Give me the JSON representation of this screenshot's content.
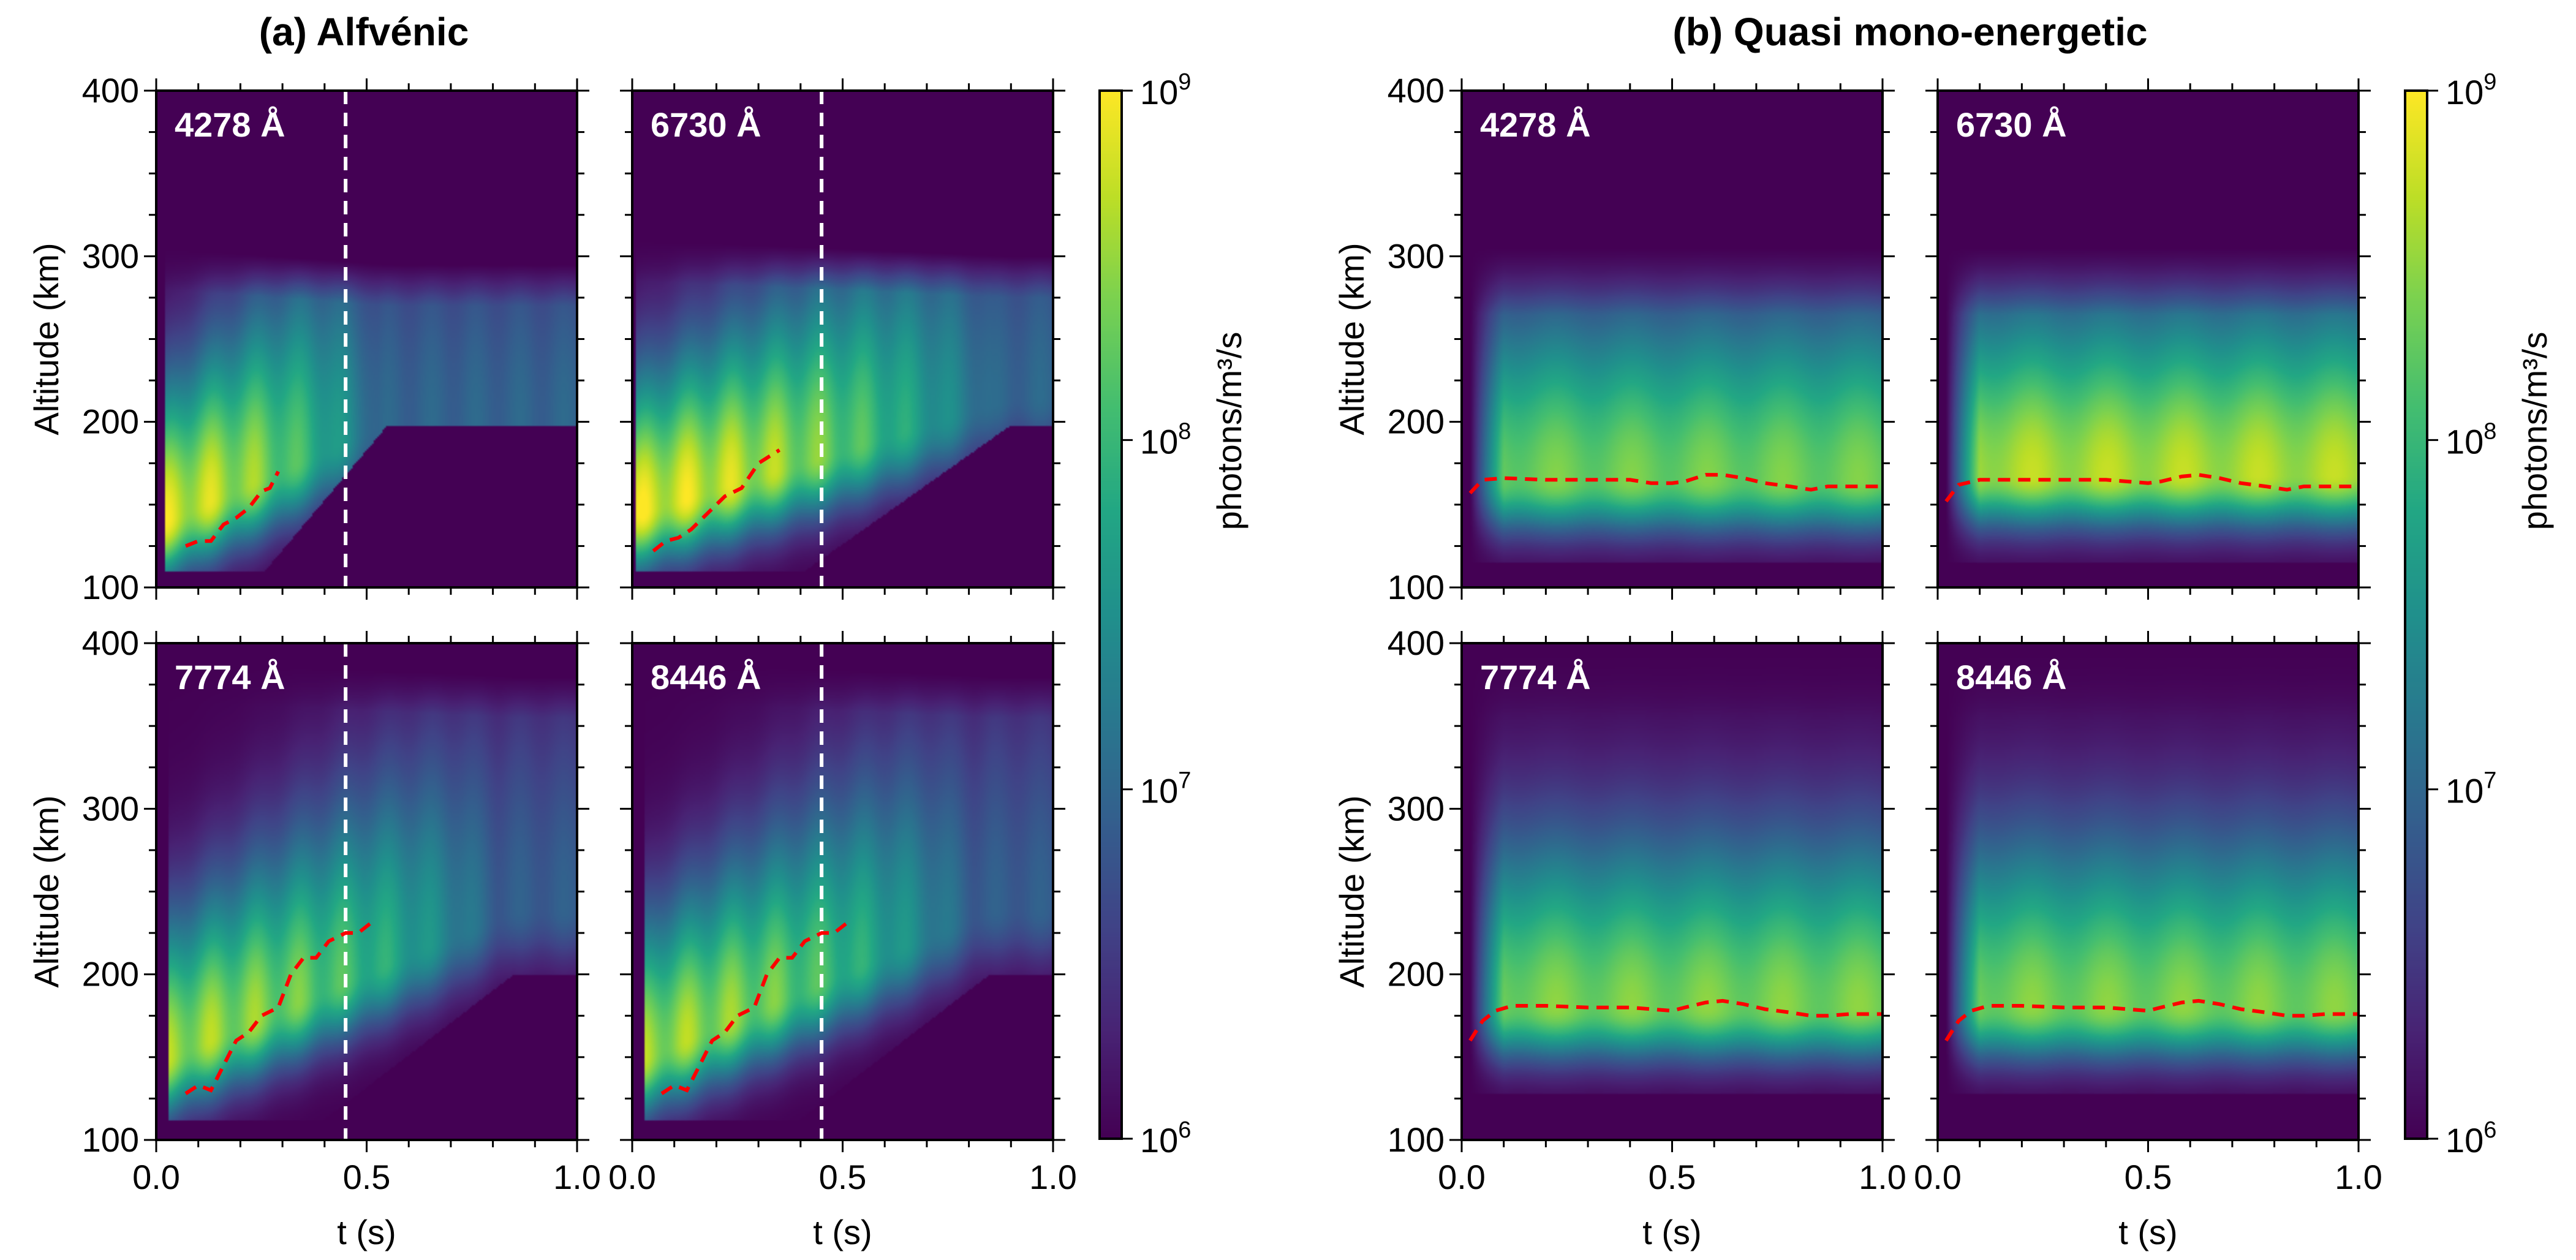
{
  "figure": {
    "groups": [
      {
        "id": "a",
        "title": "(a) Alfvénic"
      },
      {
        "id": "b",
        "title": "(b) Quasi mono-energetic"
      }
    ]
  },
  "chart_data": [
    {
      "type": "heatmap",
      "group": "a",
      "panel_title": "4278 Å",
      "xlabel": "t (s)",
      "ylabel": "Altitude (km)",
      "xlim": [
        0.0,
        1.0
      ],
      "ylim": [
        100,
        400
      ],
      "xticks": [
        "0.0",
        "0.5",
        "1.0"
      ],
      "yticks": [
        "100",
        "200",
        "300",
        "400"
      ],
      "colorscale": "viridis",
      "clim": [
        1000000.0,
        1000000000.0
      ],
      "log_color": true,
      "vline_t": 0.45,
      "peak_altitude_line": {
        "t": [
          0.07,
          0.1,
          0.13,
          0.16,
          0.19,
          0.22,
          0.25,
          0.27,
          0.29
        ],
        "alt": [
          125,
          128,
          128,
          138,
          142,
          148,
          158,
          160,
          170
        ]
      },
      "field_model": {
        "t_on": 0.02,
        "t_off": 0.55,
        "alt_peak_start": 140,
        "alt_peak_end": 200,
        "max_log": 9.0,
        "top_alt": 305,
        "bottom_alt": 110
      }
    },
    {
      "type": "heatmap",
      "group": "a",
      "panel_title": "6730 Å",
      "xlabel": "t (s)",
      "ylabel": "",
      "xlim": [
        0.0,
        1.0
      ],
      "ylim": [
        100,
        400
      ],
      "xticks": [
        "0.0",
        "0.5",
        "1.0"
      ],
      "yticks": [
        "100",
        "200",
        "300",
        "400"
      ],
      "colorscale": "viridis",
      "clim": [
        1000000.0,
        1000000000.0
      ],
      "log_color": true,
      "vline_t": 0.45,
      "peak_altitude_line": {
        "t": [
          0.05,
          0.08,
          0.11,
          0.14,
          0.18,
          0.22,
          0.26,
          0.3,
          0.35
        ],
        "alt": [
          122,
          128,
          130,
          135,
          145,
          155,
          160,
          175,
          183
        ]
      },
      "field_model": {
        "t_on": 0.01,
        "t_off": 0.9,
        "alt_peak_start": 145,
        "alt_peak_end": 215,
        "max_log": 9.05,
        "top_alt": 310,
        "bottom_alt": 110
      }
    },
    {
      "type": "heatmap",
      "group": "a",
      "panel_title": "7774 Å",
      "xlabel": "t (s)",
      "ylabel": "Altitude (km)",
      "xlim": [
        0.0,
        1.0
      ],
      "ylim": [
        100,
        400
      ],
      "xticks": [
        "0.0",
        "0.5",
        "1.0"
      ],
      "yticks": [
        "100",
        "200",
        "300",
        "400"
      ],
      "colorscale": "viridis",
      "clim": [
        1000000.0,
        1000000000.0
      ],
      "log_color": true,
      "vline_t": 0.45,
      "peak_altitude_line": {
        "t": [
          0.07,
          0.1,
          0.13,
          0.16,
          0.19,
          0.22,
          0.25,
          0.29,
          0.32,
          0.35,
          0.38,
          0.41,
          0.45,
          0.48,
          0.52
        ],
        "alt": [
          128,
          133,
          130,
          145,
          160,
          165,
          175,
          180,
          200,
          210,
          210,
          220,
          225,
          225,
          233
        ]
      },
      "field_model": {
        "t_on": 0.03,
        "t_off": 0.85,
        "alt_peak_start": 150,
        "alt_peak_end": 240,
        "max_log": 8.75,
        "top_alt": 390,
        "bottom_alt": 112
      }
    },
    {
      "type": "heatmap",
      "group": "a",
      "panel_title": "8446 Å",
      "xlabel": "t (s)",
      "ylabel": "",
      "xlim": [
        0.0,
        1.0
      ],
      "ylim": [
        100,
        400
      ],
      "xticks": [
        "0.0",
        "0.5",
        "1.0"
      ],
      "yticks": [
        "100",
        "200",
        "300",
        "400"
      ],
      "colorscale": "viridis",
      "clim": [
        1000000.0,
        1000000000.0
      ],
      "log_color": true,
      "vline_t": 0.45,
      "peak_altitude_line": {
        "t": [
          0.07,
          0.1,
          0.13,
          0.16,
          0.19,
          0.22,
          0.25,
          0.29,
          0.32,
          0.35,
          0.38,
          0.41,
          0.45,
          0.48,
          0.52
        ],
        "alt": [
          128,
          133,
          130,
          145,
          160,
          165,
          175,
          180,
          200,
          210,
          210,
          220,
          225,
          225,
          233
        ]
      },
      "field_model": {
        "t_on": 0.03,
        "t_off": 0.85,
        "alt_peak_start": 150,
        "alt_peak_end": 240,
        "max_log": 8.75,
        "top_alt": 390,
        "bottom_alt": 112
      }
    },
    {
      "type": "heatmap",
      "group": "b",
      "panel_title": "4278 Å",
      "xlabel": "t (s)",
      "ylabel": "Altitude (km)",
      "xlim": [
        0.0,
        1.0
      ],
      "ylim": [
        100,
        400
      ],
      "xticks": [
        "0.0",
        "0.5",
        "1.0"
      ],
      "yticks": [
        "100",
        "200",
        "300",
        "400"
      ],
      "colorscale": "viridis",
      "clim": [
        1000000.0,
        1000000000.0
      ],
      "log_color": true,
      "peak_altitude_line": {
        "t": [
          0.02,
          0.05,
          0.1,
          0.2,
          0.3,
          0.4,
          0.45,
          0.5,
          0.53,
          0.58,
          0.62,
          0.67,
          0.72,
          0.78,
          0.83,
          0.87,
          0.92,
          1.0
        ],
        "alt": [
          157,
          165,
          166,
          165,
          165,
          165,
          163,
          163,
          164,
          168,
          168,
          166,
          163,
          161,
          159,
          161,
          161,
          161
        ]
      },
      "field_model": {
        "t_on": 0.02,
        "t_off": 1.1,
        "alt_peak": 165,
        "max_log": 8.45,
        "top_alt": 305,
        "bottom_alt": 115
      }
    },
    {
      "type": "heatmap",
      "group": "b",
      "panel_title": "6730 Å",
      "xlabel": "t (s)",
      "ylabel": "",
      "xlim": [
        0.0,
        1.0
      ],
      "ylim": [
        100,
        400
      ],
      "xticks": [
        "0.0",
        "0.5",
        "1.0"
      ],
      "yticks": [
        "100",
        "200",
        "300",
        "400"
      ],
      "colorscale": "viridis",
      "clim": [
        1000000.0,
        1000000000.0
      ],
      "log_color": true,
      "peak_altitude_line": {
        "t": [
          0.02,
          0.05,
          0.1,
          0.2,
          0.3,
          0.4,
          0.45,
          0.5,
          0.53,
          0.58,
          0.62,
          0.67,
          0.72,
          0.78,
          0.83,
          0.87,
          0.92,
          1.0
        ],
        "alt": [
          152,
          162,
          165,
          165,
          165,
          165,
          164,
          163,
          164,
          167,
          168,
          166,
          163,
          161,
          159,
          161,
          161,
          161
        ]
      },
      "field_model": {
        "t_on": 0.02,
        "t_off": 1.1,
        "alt_peak": 168,
        "max_log": 8.75,
        "top_alt": 305,
        "bottom_alt": 115
      }
    },
    {
      "type": "heatmap",
      "group": "b",
      "panel_title": "7774 Å",
      "xlabel": "t (s)",
      "ylabel": "Altitude (km)",
      "xlim": [
        0.0,
        1.0
      ],
      "ylim": [
        100,
        400
      ],
      "xticks": [
        "0.0",
        "0.5",
        "1.0"
      ],
      "yticks": [
        "100",
        "200",
        "300",
        "400"
      ],
      "colorscale": "viridis",
      "clim": [
        1000000.0,
        1000000000.0
      ],
      "log_color": true,
      "peak_altitude_line": {
        "t": [
          0.02,
          0.05,
          0.08,
          0.12,
          0.2,
          0.3,
          0.4,
          0.5,
          0.53,
          0.58,
          0.62,
          0.67,
          0.72,
          0.78,
          0.83,
          0.87,
          0.92,
          1.0
        ],
        "alt": [
          160,
          172,
          178,
          181,
          181,
          180,
          180,
          178,
          180,
          183,
          184,
          182,
          179,
          177,
          175,
          175,
          176,
          176
        ]
      },
      "field_model": {
        "t_on": 0.02,
        "t_off": 1.1,
        "alt_peak": 180,
        "max_log": 8.5,
        "top_alt": 395,
        "bottom_alt": 128
      }
    },
    {
      "type": "heatmap",
      "group": "b",
      "panel_title": "8446 Å",
      "xlabel": "t (s)",
      "ylabel": "",
      "xlim": [
        0.0,
        1.0
      ],
      "ylim": [
        100,
        400
      ],
      "xticks": [
        "0.0",
        "0.5",
        "1.0"
      ],
      "yticks": [
        "100",
        "200",
        "300",
        "400"
      ],
      "colorscale": "viridis",
      "clim": [
        1000000.0,
        1000000000.0
      ],
      "log_color": true,
      "peak_altitude_line": {
        "t": [
          0.02,
          0.05,
          0.08,
          0.12,
          0.2,
          0.3,
          0.4,
          0.5,
          0.53,
          0.58,
          0.62,
          0.67,
          0.72,
          0.78,
          0.83,
          0.87,
          0.92,
          1.0
        ],
        "alt": [
          160,
          172,
          178,
          181,
          181,
          180,
          180,
          178,
          180,
          183,
          184,
          182,
          179,
          177,
          175,
          175,
          176,
          176
        ]
      },
      "field_model": {
        "t_on": 0.02,
        "t_off": 1.1,
        "alt_peak": 180,
        "max_log": 8.5,
        "top_alt": 395,
        "bottom_alt": 128
      }
    }
  ],
  "colorbars": [
    {
      "group": "a",
      "label": "photons/m³/s",
      "ticks": [
        {
          "base": "10",
          "exp": "9"
        },
        {
          "base": "10",
          "exp": "8"
        },
        {
          "base": "10",
          "exp": "7"
        },
        {
          "base": "10",
          "exp": "6"
        }
      ],
      "tick_values": [
        9,
        8,
        7,
        6
      ],
      "range_log": [
        6,
        9
      ]
    },
    {
      "group": "b",
      "label": "photons/m³/s",
      "ticks": [
        {
          "base": "10",
          "exp": "9"
        },
        {
          "base": "10",
          "exp": "8"
        },
        {
          "base": "10",
          "exp": "7"
        },
        {
          "base": "10",
          "exp": "6"
        }
      ],
      "tick_values": [
        9,
        8,
        7,
        6
      ],
      "range_log": [
        6,
        9
      ]
    }
  ],
  "colors": {
    "background_low": "#440154",
    "peak_line": "#ff0000",
    "marker_line": "#ffffff",
    "axis": "#000000"
  }
}
